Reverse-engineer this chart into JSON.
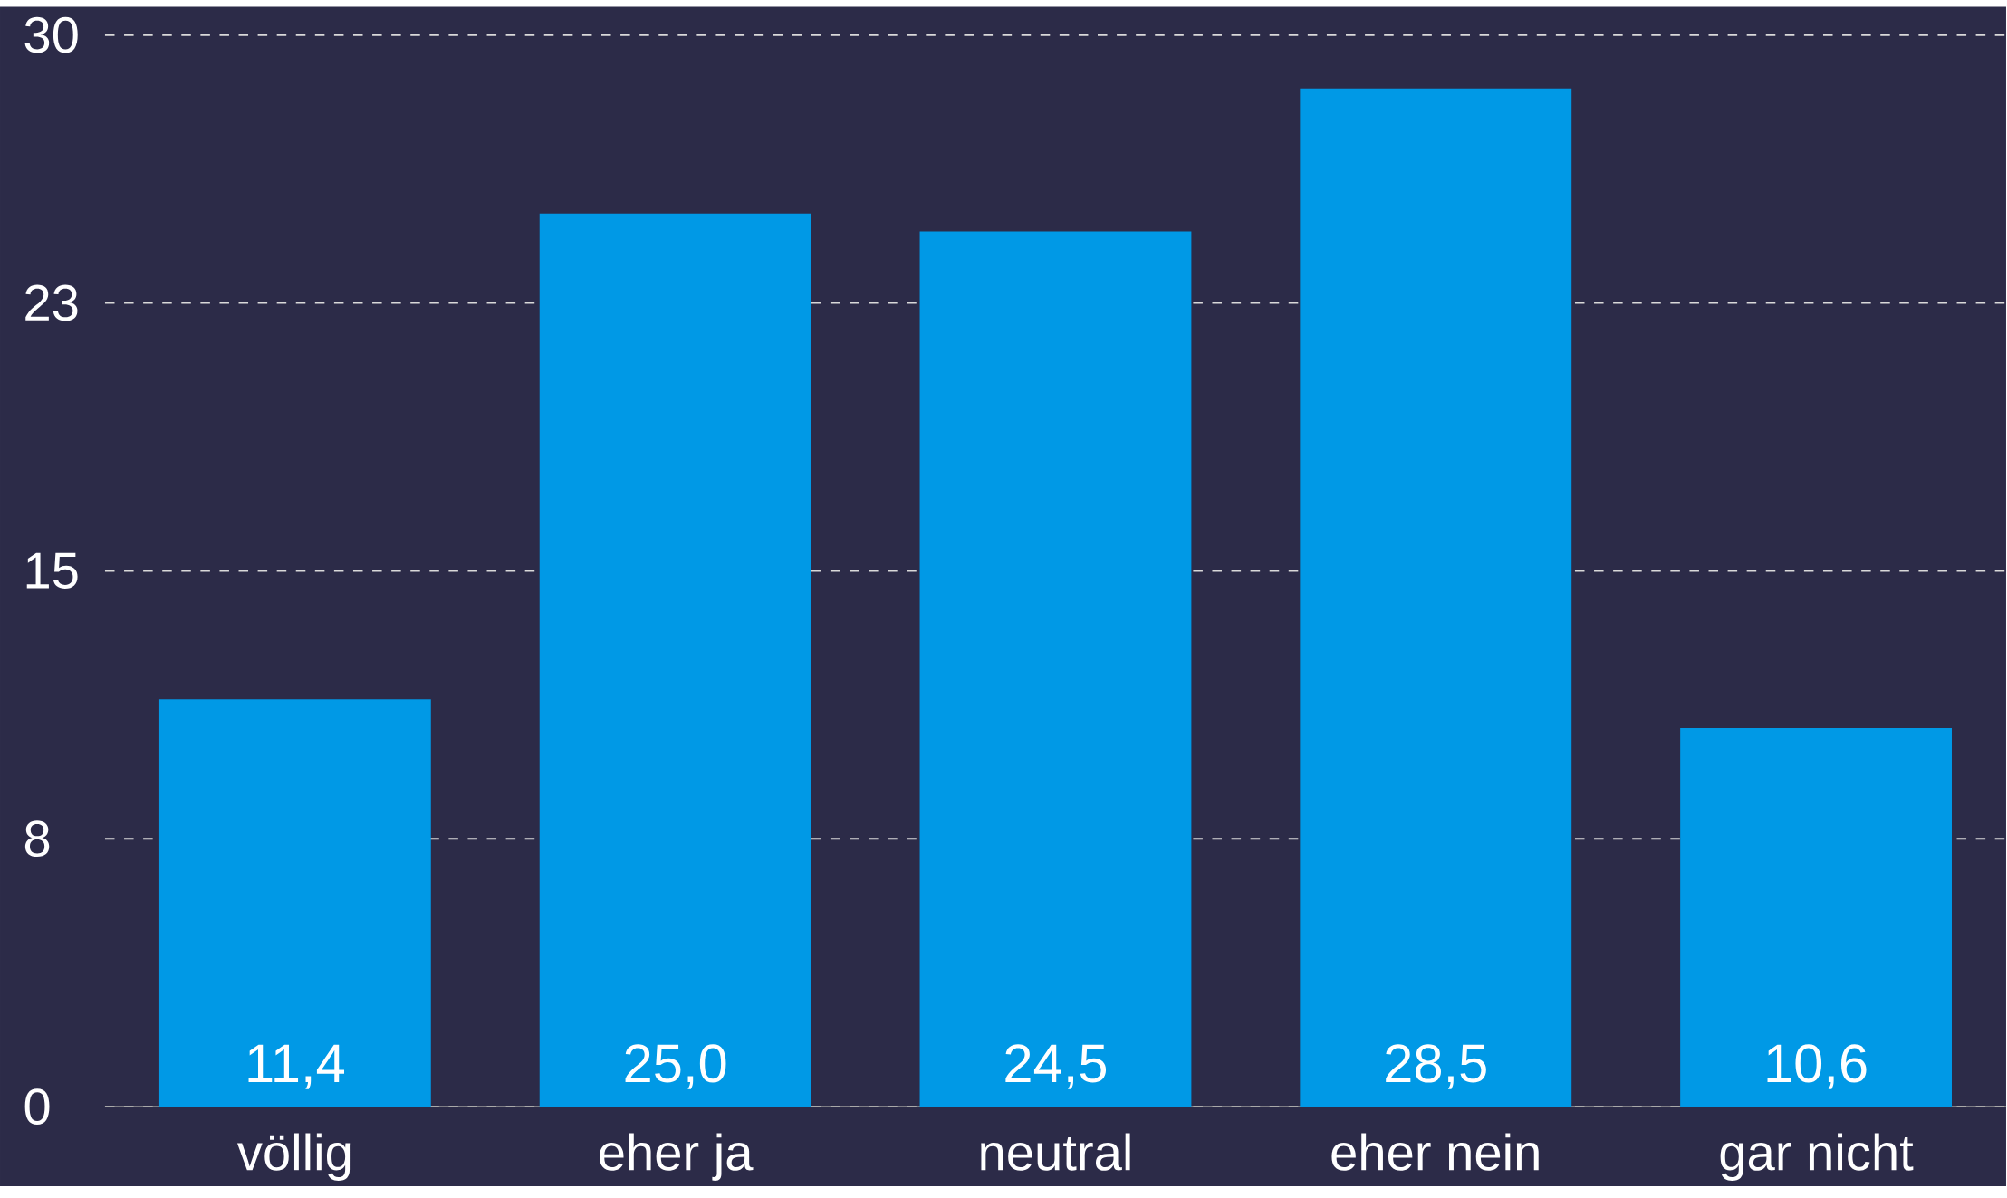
{
  "chart_data": {
    "type": "bar",
    "categories": [
      "völlig",
      "eher ja",
      "neutral",
      "eher nein",
      "gar nicht"
    ],
    "values": [
      11.4,
      25.0,
      24.5,
      28.5,
      10.6
    ],
    "value_labels": [
      "11,4",
      "25,0",
      "24,5",
      "28,5",
      "10,6"
    ],
    "color": "#0099e6",
    "ylim": [
      0,
      30
    ],
    "yticks": [
      0,
      {
        "value": 7.5,
        "label": "8"
      },
      15,
      {
        "value": 22.5,
        "label": "23"
      },
      30
    ],
    "grid": "y"
  }
}
